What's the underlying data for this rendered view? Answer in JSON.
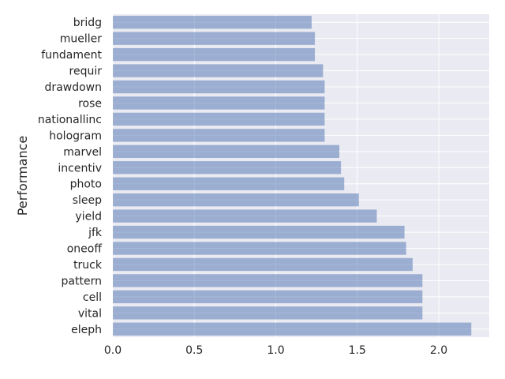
{
  "chart_data": {
    "type": "bar",
    "orientation": "horizontal",
    "title": "",
    "xlabel": "",
    "ylabel": "Performance",
    "categories": [
      "eleph",
      "vital",
      "cell",
      "pattern",
      "truck",
      "oneoff",
      "jfk",
      "yield",
      "sleep",
      "photo",
      "incentiv",
      "marvel",
      "hologram",
      "nationallinc",
      "rose",
      "drawdown",
      "requir",
      "fundament",
      "mueller",
      "bridg"
    ],
    "values": [
      2.2,
      1.9,
      1.9,
      1.9,
      1.84,
      1.8,
      1.79,
      1.62,
      1.51,
      1.42,
      1.4,
      1.39,
      1.3,
      1.3,
      1.3,
      1.3,
      1.29,
      1.24,
      1.24,
      1.22
    ],
    "xlim": [
      0,
      2.31
    ],
    "xticks": [
      "0.0",
      "0.5",
      "1.0",
      "1.5",
      "2.0"
    ],
    "grid": true,
    "legend": "none",
    "colors": {
      "background": "#eaeaf2",
      "bar": "#4c72b0",
      "bar_opacity": 0.5,
      "grid": "#ffffff"
    }
  }
}
